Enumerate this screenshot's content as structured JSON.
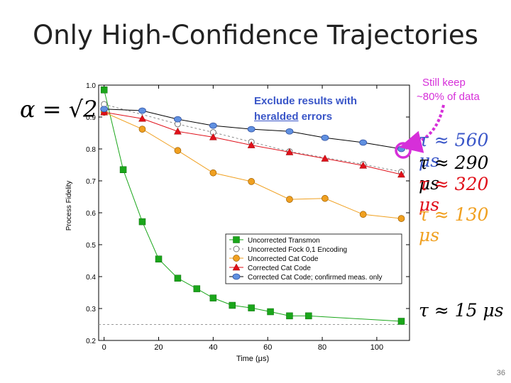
{
  "slide": {
    "title": "Only High-Confidence Trajectories",
    "alpha_label": "α = √2",
    "page_number": "36",
    "callout_line1": "Exclude results with",
    "callout_word": "heralded",
    "callout_rest": " errors",
    "keep_line1": "Still keep",
    "keep_line2": "~80% of data",
    "keep_color": "#d62fd9",
    "taus": [
      {
        "text": "τ ≈ 560 μs",
        "color": "#3a56c8"
      },
      {
        "text": "τ ≈ 290 μs",
        "color": "#000000"
      },
      {
        "text": "τ ≈ 320 μs",
        "color": "#e0101a"
      },
      {
        "text": "τ ≈ 130 μs",
        "color": "#f0a020"
      },
      {
        "text": "τ ≈ 15 μs",
        "color": "#000000"
      }
    ]
  },
  "chart_data": {
    "type": "line",
    "xlabel": "Time (μs)",
    "ylabel": "Process Fidelity",
    "xlim": [
      -2,
      112
    ],
    "ylim": [
      0.2,
      1.0
    ],
    "xticks": [
      0,
      20,
      40,
      60,
      80,
      100
    ],
    "xtick_labels": [
      "0",
      "20",
      "40",
      "60",
      "80",
      "100"
    ],
    "yticks": [
      0.2,
      0.3,
      0.4,
      0.5,
      0.6,
      0.7,
      0.8,
      0.9,
      1.0
    ],
    "ytick_labels": [
      "0.2",
      "0.3",
      "0.4",
      "0.5",
      "0.6",
      "0.7",
      "0.8",
      "0.9",
      "1.0"
    ],
    "legend_position": "lower-right",
    "baseline_y": 0.25,
    "series": [
      {
        "name": "Uncorrected Transmon",
        "color": "#1aa61a",
        "marker": "square",
        "line": "solid",
        "x": [
          0,
          7,
          14,
          20,
          27,
          34,
          40,
          47,
          54,
          61,
          68,
          75,
          109
        ],
        "y": [
          0.985,
          0.735,
          0.572,
          0.455,
          0.395,
          0.362,
          0.333,
          0.31,
          0.302,
          0.29,
          0.277,
          0.277,
          0.26
        ]
      },
      {
        "name": "Uncorrected Fock 0,1 Encoding",
        "color": "#999999",
        "marker": "open-circle",
        "line": "dashed",
        "x": [
          0,
          27,
          40,
          54,
          68,
          95,
          109
        ],
        "y": [
          0.94,
          0.878,
          0.852,
          0.822,
          0.792,
          0.752,
          0.728
        ]
      },
      {
        "name": "Uncorrected Cat Code",
        "color": "#f0a020",
        "marker": "circle",
        "line": "solid",
        "x": [
          0,
          14,
          27,
          40,
          54,
          68,
          81,
          95,
          109
        ],
        "y": [
          0.915,
          0.862,
          0.795,
          0.725,
          0.698,
          0.642,
          0.645,
          0.595,
          0.582
        ]
      },
      {
        "name": "Corrected Cat Code",
        "color": "#e0101a",
        "marker": "triangle",
        "line": "solid",
        "x": [
          0,
          14,
          27,
          40,
          54,
          68,
          81,
          95,
          109
        ],
        "y": [
          0.915,
          0.895,
          0.855,
          0.837,
          0.812,
          0.79,
          0.77,
          0.748,
          0.72
        ]
      },
      {
        "name": "Corrected Cat Code; confirmed meas. only",
        "color": "#6090e0",
        "marker": "diamond",
        "line": "solid-black",
        "x": [
          0,
          14,
          27,
          40,
          54,
          68,
          81,
          95,
          109
        ],
        "y": [
          0.925,
          0.92,
          0.893,
          0.873,
          0.862,
          0.855,
          0.835,
          0.82,
          0.8
        ]
      }
    ]
  }
}
